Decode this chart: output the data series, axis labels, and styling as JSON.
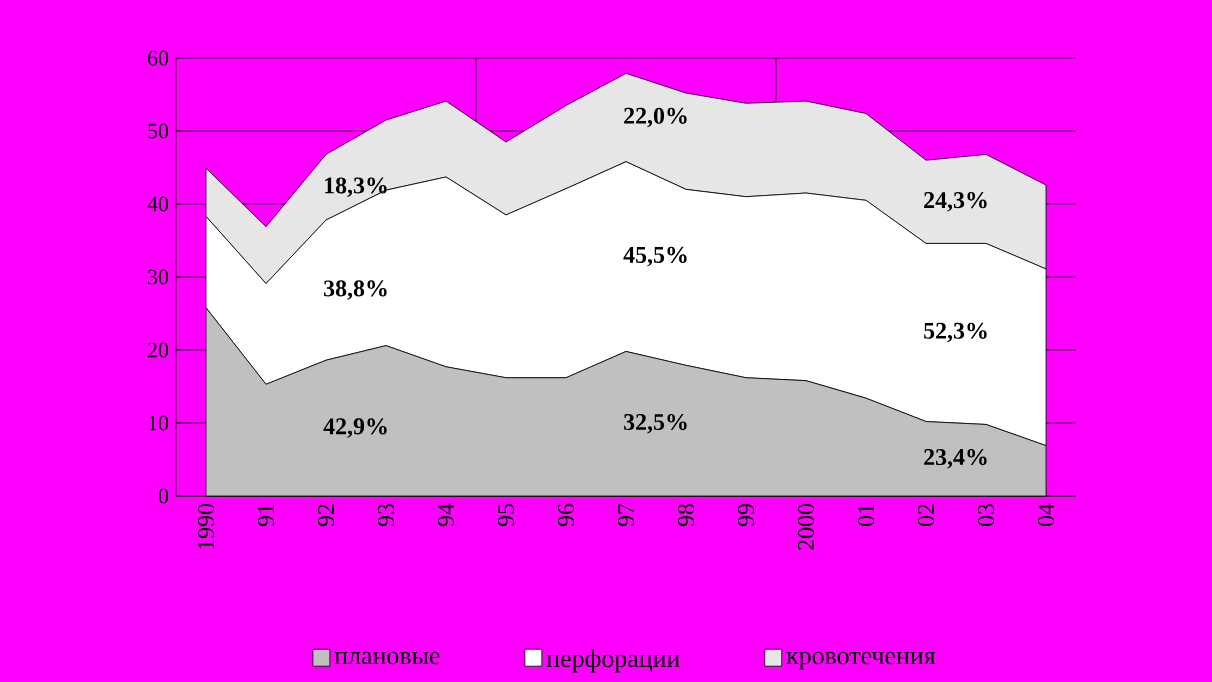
{
  "chart_data": {
    "type": "area",
    "stacked": true,
    "categories": [
      "1990",
      "91",
      "92",
      "93",
      "94",
      "95",
      "96",
      "97",
      "98",
      "99",
      "2000",
      "01",
      "02",
      "03",
      "04"
    ],
    "series": [
      {
        "name": "плановые",
        "color": "#c0c0c0",
        "values": [
          25.8,
          15.3,
          18.6,
          20.6,
          17.7,
          16.2,
          16.2,
          19.8,
          17.9,
          16.2,
          15.8,
          13.4,
          10.2,
          9.8,
          6.9
        ]
      },
      {
        "name": "перфорации",
        "color": "#ffffff",
        "values": [
          12.5,
          13.8,
          19.2,
          21.3,
          26.0,
          22.3,
          25.9,
          26.0,
          24.1,
          24.8,
          25.7,
          27.1,
          24.4,
          24.8,
          24.2
        ]
      },
      {
        "name": "кровотечения",
        "color": "#e6e6e6",
        "values": [
          6.6,
          7.8,
          9.0,
          9.6,
          10.4,
          10.0,
          11.4,
          12.1,
          13.2,
          12.8,
          12.6,
          11.9,
          11.4,
          12.2,
          11.5
        ]
      }
    ],
    "ylim": [
      0,
      60
    ],
    "yticks": [
      0,
      10,
      20,
      30,
      40,
      50,
      60
    ],
    "grid": "y",
    "legend": "bottom",
    "annotations": [
      "18,3%",
      "38,8%",
      "42,9%",
      "22,0%",
      "45,5%",
      "32,5%",
      "24,3%",
      "52,3%",
      "23,4%"
    ]
  }
}
